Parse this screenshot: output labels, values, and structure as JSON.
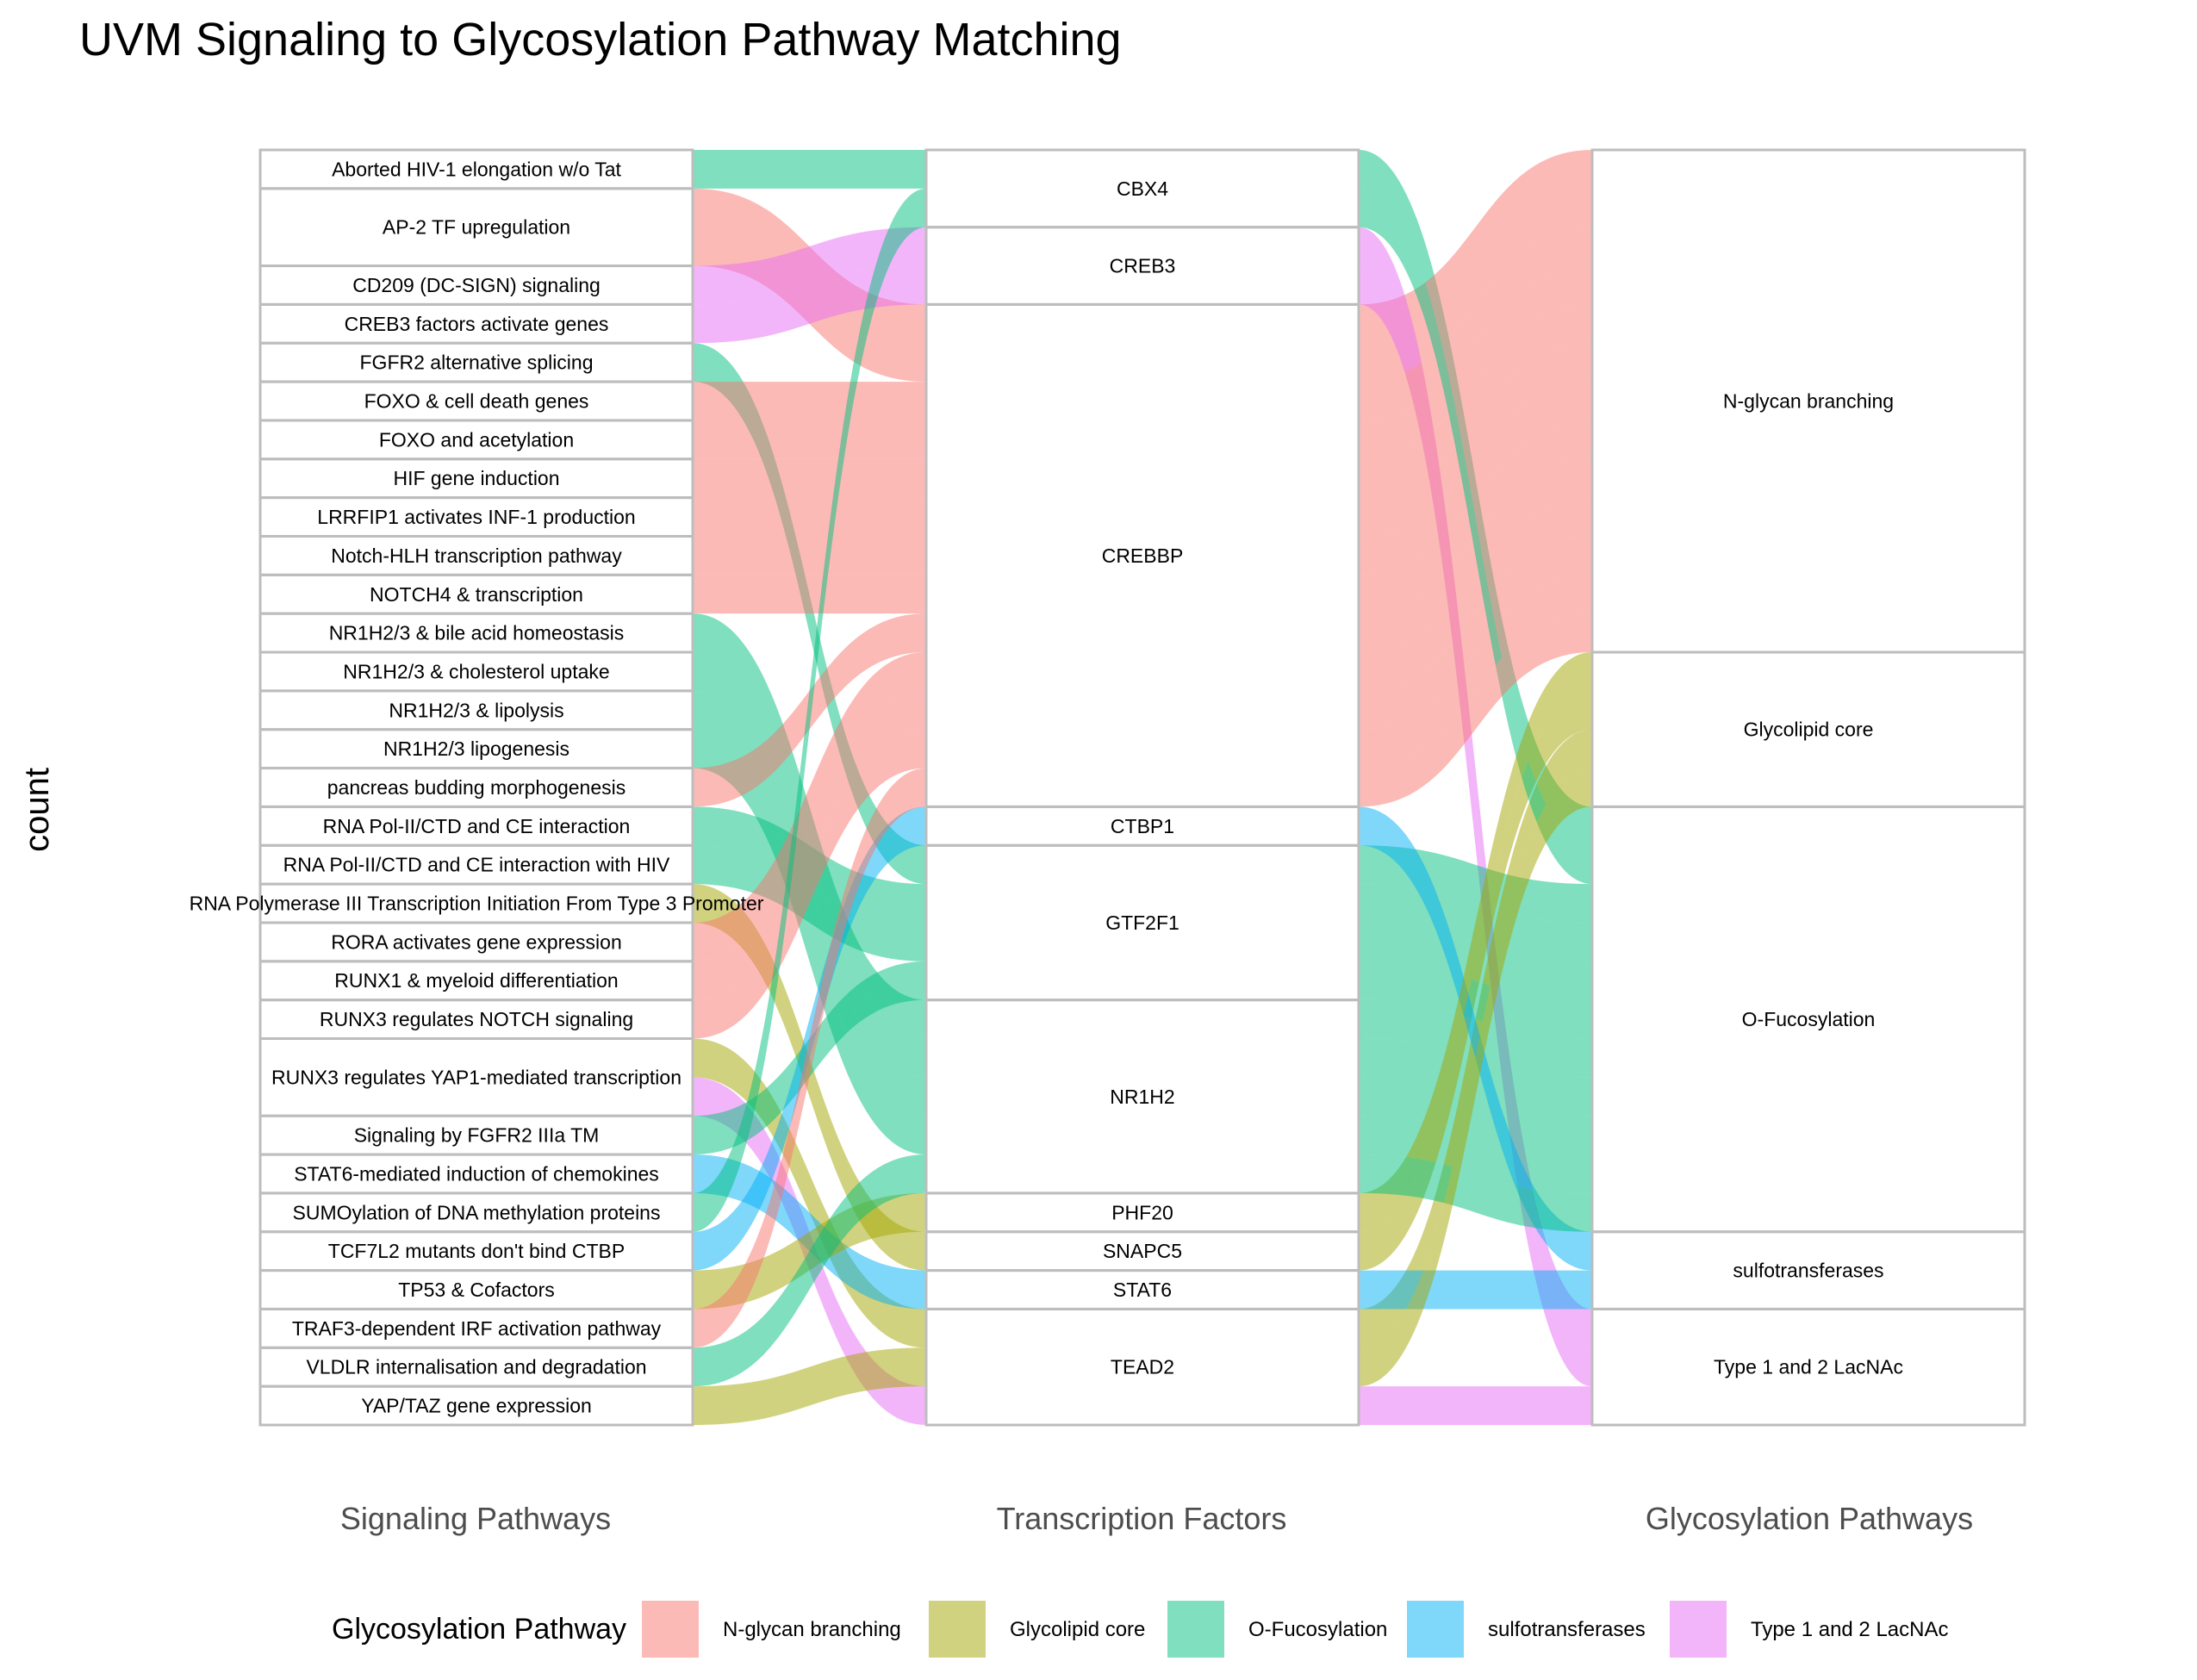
{
  "title": "UVM Signaling to Glycosylation Pathway Matching",
  "colors": {
    "N-glycan branching": "#F8766D",
    "Glycolipid core": "#A3A500",
    "O-Fucosylation": "#00BF7D",
    "sulfotransferases": "#00B0F6",
    "Type 1 and 2 LacNAc": "#E76BF3"
  },
  "chart_data": {
    "type": "alluvial",
    "title": "UVM Signaling to Glycosylation Pathway Matching",
    "ylabel": "count",
    "axes": [
      "Signaling Pathways",
      "Transcription Factors",
      "Glycosylation Pathways"
    ],
    "legend": {
      "title": "Glycosylation Pathway",
      "position": "bottom",
      "entries": [
        "N-glycan branching",
        "Glycolipid core",
        "O-Fucosylation",
        "sulfotransferases",
        "Type 1 and 2 LacNAc"
      ]
    },
    "strata": {
      "Signaling Pathways": [
        "Aborted HIV-1 elongation w/o Tat",
        "AP-2 TF upregulation",
        "CD209 (DC-SIGN) signaling",
        "CREB3 factors activate genes",
        "FGFR2 alternative splicing",
        "FOXO & cell death genes",
        "FOXO and acetylation",
        "HIF gene induction",
        "LRRFIP1 activates INF-1 production",
        "Notch-HLH transcription pathway",
        "NOTCH4 & transcription",
        "NR1H2/3 & bile acid homeostasis",
        "NR1H2/3 & cholesterol uptake",
        "NR1H2/3 & lipolysis",
        "NR1H2/3 lipogenesis",
        "pancreas budding morphogenesis",
        "RNA Pol-II/CTD and CE interaction",
        "RNA Pol-II/CTD and CE interaction with HIV",
        "RNA Polymerase III Transcription Initiation From Type 3 Promoter",
        "RORA activates gene expression",
        "RUNX1 & myeloid differentiation",
        "RUNX3 regulates NOTCH signaling",
        "RUNX3 regulates YAP1-mediated transcription",
        "Signaling by FGFR2 IIIa TM",
        "STAT6-mediated induction of chemokines",
        "SUMOylation of DNA methylation proteins",
        "TCF7L2 mutants don't bind CTBP",
        "TP53 & Cofactors",
        "TRAF3-dependent IRF activation pathway",
        "VLDLR internalisation and degradation",
        "YAP/TAZ gene expression"
      ],
      "Transcription Factors": [
        "CBX4",
        "CREB3",
        "CREBBP",
        "CTBP1",
        "GTF2F1",
        "NR1H2",
        "PHF20",
        "SNAPC5",
        "STAT6",
        "TEAD2"
      ],
      "Glycosylation Pathways": [
        "N-glycan branching",
        "Glycolipid core",
        "O-Fucosylation",
        "sulfotransferases",
        "Type 1 and 2 LacNAc"
      ]
    },
    "flows": [
      {
        "signaling": "Aborted HIV-1 elongation w/o Tat",
        "tf": "CBX4",
        "glyco": "O-Fucosylation",
        "count": 1
      },
      {
        "signaling": "AP-2 TF upregulation",
        "tf": "CREBBP",
        "glyco": "N-glycan branching",
        "count": 2
      },
      {
        "signaling": "CD209 (DC-SIGN) signaling",
        "tf": "CREB3",
        "glyco": "Type 1 and 2 LacNAc",
        "count": 1
      },
      {
        "signaling": "CREB3 factors activate genes",
        "tf": "CREB3",
        "glyco": "Type 1 and 2 LacNAc",
        "count": 1
      },
      {
        "signaling": "FGFR2 alternative splicing",
        "tf": "GTF2F1",
        "glyco": "O-Fucosylation",
        "count": 1
      },
      {
        "signaling": "FOXO & cell death genes",
        "tf": "CREBBP",
        "glyco": "N-glycan branching",
        "count": 1
      },
      {
        "signaling": "FOXO and acetylation",
        "tf": "CREBBP",
        "glyco": "N-glycan branching",
        "count": 1
      },
      {
        "signaling": "HIF gene induction",
        "tf": "CREBBP",
        "glyco": "N-glycan branching",
        "count": 1
      },
      {
        "signaling": "LRRFIP1 activates INF-1 production",
        "tf": "CREBBP",
        "glyco": "N-glycan branching",
        "count": 1
      },
      {
        "signaling": "Notch-HLH transcription pathway",
        "tf": "CREBBP",
        "glyco": "N-glycan branching",
        "count": 1
      },
      {
        "signaling": "NOTCH4 & transcription",
        "tf": "CREBBP",
        "glyco": "N-glycan branching",
        "count": 1
      },
      {
        "signaling": "NR1H2/3 & bile acid homeostasis",
        "tf": "NR1H2",
        "glyco": "O-Fucosylation",
        "count": 1
      },
      {
        "signaling": "NR1H2/3 & cholesterol uptake",
        "tf": "NR1H2",
        "glyco": "O-Fucosylation",
        "count": 1
      },
      {
        "signaling": "NR1H2/3 & lipolysis",
        "tf": "NR1H2",
        "glyco": "O-Fucosylation",
        "count": 1
      },
      {
        "signaling": "NR1H2/3 lipogenesis",
        "tf": "NR1H2",
        "glyco": "O-Fucosylation",
        "count": 1
      },
      {
        "signaling": "pancreas budding morphogenesis",
        "tf": "CREBBP",
        "glyco": "N-glycan branching",
        "count": 1
      },
      {
        "signaling": "RNA Pol-II/CTD and CE interaction",
        "tf": "GTF2F1",
        "glyco": "O-Fucosylation",
        "count": 1
      },
      {
        "signaling": "RNA Pol-II/CTD and CE interaction with HIV",
        "tf": "GTF2F1",
        "glyco": "O-Fucosylation",
        "count": 1
      },
      {
        "signaling": "RNA Polymerase III Transcription Initiation From Type 3 Promoter",
        "tf": "SNAPC5",
        "glyco": "Glycolipid core",
        "count": 1
      },
      {
        "signaling": "RORA activates gene expression",
        "tf": "CREBBP",
        "glyco": "N-glycan branching",
        "count": 1
      },
      {
        "signaling": "RUNX1 & myeloid differentiation",
        "tf": "CREBBP",
        "glyco": "N-glycan branching",
        "count": 1
      },
      {
        "signaling": "RUNX3 regulates NOTCH signaling",
        "tf": "CREBBP",
        "glyco": "N-glycan branching",
        "count": 1
      },
      {
        "signaling": "RUNX3 regulates YAP1-mediated transcription",
        "tf": "TEAD2",
        "glyco": "Glycolipid core",
        "count": 1
      },
      {
        "signaling": "RUNX3 regulates YAP1-mediated transcription",
        "tf": "TEAD2",
        "glyco": "Type 1 and 2 LacNAc",
        "count": 1
      },
      {
        "signaling": "Signaling by FGFR2 IIIa TM",
        "tf": "GTF2F1",
        "glyco": "O-Fucosylation",
        "count": 1
      },
      {
        "signaling": "STAT6-mediated induction of chemokines",
        "tf": "STAT6",
        "glyco": "sulfotransferases",
        "count": 1
      },
      {
        "signaling": "SUMOylation of DNA methylation proteins",
        "tf": "CBX4",
        "glyco": "O-Fucosylation",
        "count": 1
      },
      {
        "signaling": "TCF7L2 mutants don't bind CTBP",
        "tf": "CTBP1",
        "glyco": "sulfotransferases",
        "count": 1
      },
      {
        "signaling": "TP53 & Cofactors",
        "tf": "PHF20",
        "glyco": "Glycolipid core",
        "count": 1
      },
      {
        "signaling": "TRAF3-dependent IRF activation pathway",
        "tf": "CREBBP",
        "glyco": "N-glycan branching",
        "count": 1
      },
      {
        "signaling": "VLDLR internalisation and degradation",
        "tf": "NR1H2",
        "glyco": "O-Fucosylation",
        "count": 1
      },
      {
        "signaling": "YAP/TAZ gene expression",
        "tf": "TEAD2",
        "glyco": "Glycolipid core",
        "count": 1
      }
    ]
  }
}
